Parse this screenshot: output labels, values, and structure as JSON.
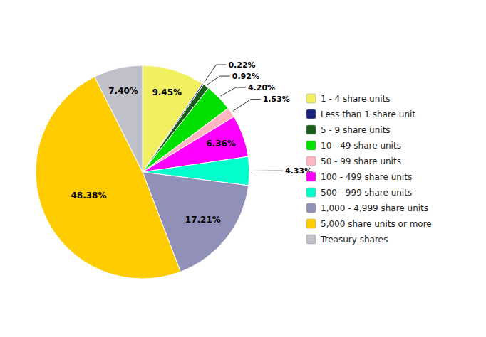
{
  "chart_data": {
    "type": "pie",
    "categories": [
      "1 - 4 share units",
      "Less than 1 share unit",
      "5 - 9 share units",
      "10 - 49 share units",
      "50 - 99 share units",
      "100 - 499 share units",
      "500 - 999 share units",
      "1,000 - 4,999 share units",
      "5,000 share units or more",
      "Treasury shares"
    ],
    "values": [
      9.45,
      0.22,
      0.92,
      4.2,
      1.53,
      6.36,
      4.33,
      17.21,
      48.38,
      7.4
    ],
    "value_labels": [
      "9.45%",
      "0.22%",
      "0.92%",
      "4.20%",
      "1.53%",
      "6.36%",
      "4.33%",
      "17.21%",
      "48.38%",
      "7.40%"
    ],
    "colors": [
      "#f0f060",
      "#1a237e",
      "#1a5c1a",
      "#00e000",
      "#ffb6c1",
      "#ff00ff",
      "#00ffcc",
      "#9090b8",
      "#ffcc00",
      "#c0c0c8"
    ],
    "data_labels": true,
    "legend": "right"
  }
}
